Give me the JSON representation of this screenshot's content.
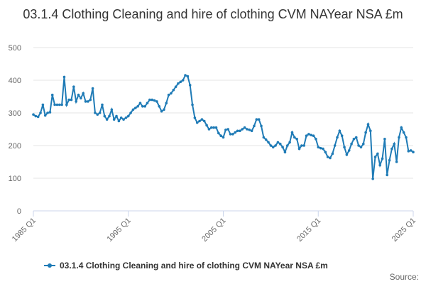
{
  "chart_data": {
    "type": "line",
    "title": "03.1.4 Clothing Cleaning and hire of clothing CVM NAYear NSA £m",
    "source": "Source:",
    "categories": [
      "1985 Q1",
      null,
      null,
      null,
      null,
      null,
      null,
      null,
      null,
      null,
      null,
      null,
      null,
      null,
      null,
      null,
      null,
      null,
      null,
      null,
      null,
      null,
      null,
      null,
      null,
      null,
      null,
      null,
      null,
      null,
      null,
      null,
      null,
      null,
      null,
      null,
      null,
      null,
      null,
      null,
      "1995 Q1",
      null,
      null,
      null,
      null,
      null,
      null,
      null,
      null,
      null,
      null,
      null,
      null,
      null,
      null,
      null,
      null,
      null,
      null,
      null,
      null,
      null,
      null,
      null,
      null,
      null,
      null,
      null,
      null,
      null,
      null,
      null,
      null,
      null,
      null,
      null,
      null,
      null,
      null,
      null,
      "2005 Q1",
      null,
      null,
      null,
      null,
      null,
      null,
      null,
      null,
      null,
      null,
      null,
      null,
      null,
      null,
      null,
      null,
      null,
      null,
      null,
      null,
      null,
      null,
      null,
      null,
      null,
      null,
      null,
      null,
      null,
      null,
      null,
      null,
      null,
      null,
      null,
      null,
      null,
      null,
      null,
      "2015 Q1",
      null,
      null,
      null,
      null,
      null,
      null,
      null,
      null,
      null,
      null,
      null,
      null,
      null,
      null,
      null,
      null,
      null,
      null,
      null,
      null,
      null,
      null,
      null,
      null,
      null,
      null,
      null,
      null,
      null,
      null,
      null,
      null,
      null,
      null,
      null,
      null,
      null,
      null,
      null,
      "2025 Q1"
    ],
    "series": [
      {
        "name": "03.1.4 Clothing Cleaning and hire of clothing CVM NAYear NSA £m",
        "color": "#1f7bb6",
        "values": [
          295,
          290,
          288,
          300,
          325,
          292,
          300,
          302,
          355,
          325,
          325,
          325,
          325,
          410,
          325,
          340,
          340,
          380,
          335,
          355,
          345,
          360,
          335,
          335,
          340,
          375,
          300,
          295,
          300,
          325,
          290,
          280,
          290,
          310,
          280,
          290,
          275,
          285,
          280,
          285,
          290,
          300,
          310,
          315,
          320,
          330,
          320,
          320,
          330,
          340,
          340,
          338,
          335,
          320,
          305,
          310,
          330,
          355,
          360,
          370,
          380,
          390,
          395,
          400,
          415,
          412,
          385,
          325,
          285,
          270,
          275,
          280,
          275,
          262,
          250,
          255,
          255,
          255,
          238,
          230,
          225,
          248,
          250,
          235,
          235,
          240,
          245,
          245,
          250,
          255,
          250,
          248,
          245,
          260,
          280,
          280,
          260,
          225,
          218,
          210,
          200,
          195,
          200,
          210,
          205,
          195,
          180,
          200,
          210,
          240,
          225,
          220,
          190,
          200,
          200,
          230,
          235,
          232,
          230,
          220,
          195,
          192,
          190,
          180,
          165,
          162,
          175,
          200,
          225,
          245,
          230,
          195,
          172,
          185,
          205,
          220,
          225,
          200,
          195,
          205,
          240,
          265,
          245,
          98,
          165,
          175,
          140,
          160,
          220,
          110,
          155,
          190,
          205,
          150,
          225,
          255,
          240,
          225,
          183,
          185,
          180
        ]
      }
    ],
    "ylim": [
      0,
      500
    ],
    "yticks": [
      0,
      100,
      200,
      300,
      400,
      500
    ],
    "grid": true
  }
}
